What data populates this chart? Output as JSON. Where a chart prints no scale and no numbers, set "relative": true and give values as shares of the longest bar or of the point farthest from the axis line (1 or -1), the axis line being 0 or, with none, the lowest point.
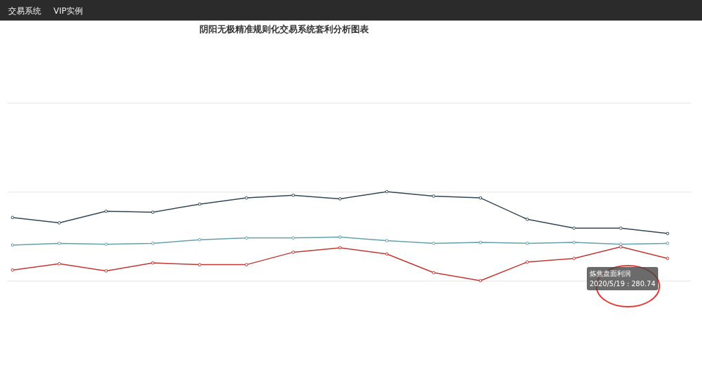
{
  "chart_data": {
    "type": "line",
    "title": "阴阳无极精准规则化交易系统套利分析图表",
    "relative": true,
    "grid": "y",
    "marker": "circle",
    "line_style": "solid",
    "categories": [
      null,
      null,
      null,
      null,
      null,
      null,
      null,
      null,
      null,
      null,
      null,
      null,
      null,
      null,
      null
    ],
    "series": [
      {
        "color": "#2f4554",
        "values": [
          0.71,
          0.65,
          0.78,
          0.77,
          0.86,
          0.93,
          0.96,
          0.92,
          1,
          0.95,
          0.93,
          0.69,
          0.59,
          0.59,
          0.53
        ]
      },
      {
        "color": "#61a0a8",
        "values": [
          0.4,
          0.42,
          0.41,
          0.42,
          0.46,
          0.48,
          0.48,
          0.49,
          0.45,
          0.42,
          0.43,
          0.42,
          0.43,
          0.41,
          0.42
        ]
      },
      {
        "color": "#c23531",
        "values": [
          0.12,
          0.19,
          0.11,
          0.2,
          0.18,
          0.18,
          0.32,
          0.37,
          0.3,
          0.09,
          0,
          0.21,
          0.25,
          0.38,
          0.25
        ]
      }
    ],
    "annotations": [
      "交易系统",
      "VIP实例",
      "炼焦盘面利润\n2020/5/19 : 280.74"
    ]
  }
}
